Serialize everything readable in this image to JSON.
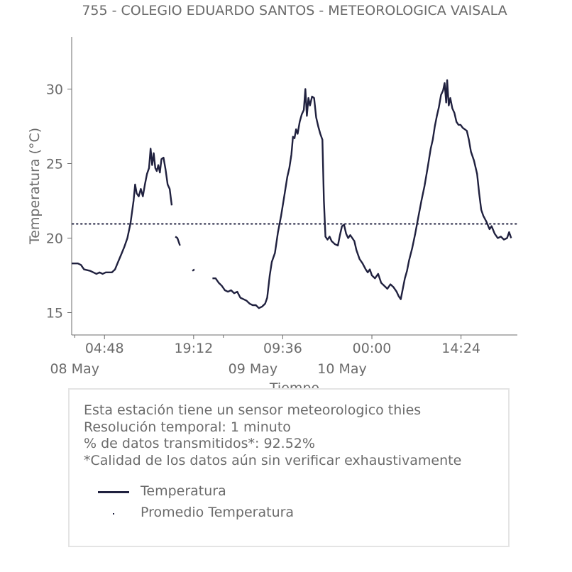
{
  "chart_data": {
    "type": "line",
    "title": "755 - COLEGIO EDUARDO SANTOS - METEOROLOGICA VAISALA",
    "xlabel": "Tiempo",
    "ylabel": "Temperatura (°C)",
    "x_range": [
      "2024-05-07 23:30",
      "2024-05-10 23:30"
    ],
    "ylim": [
      13.5,
      33.5
    ],
    "grid": false,
    "y_ticks": [
      15,
      20,
      25,
      30
    ],
    "x_ticks": [
      {
        "t": "2024-05-08 04:48",
        "label": "04:48",
        "date_label": "08 May"
      },
      {
        "t": "2024-05-08 19:12",
        "label": "19:12",
        "date_label": ""
      },
      {
        "t": "2024-05-09 09:36",
        "label": "09:36",
        "date_label": "09 May"
      },
      {
        "t": "2024-05-10 00:00",
        "label": "00:00",
        "date_label": "10 May"
      },
      {
        "t": "2024-05-10 14:24",
        "label": "14:24",
        "date_label": ""
      }
    ],
    "minor_x_ticks": [
      "2024-05-08 00:00",
      "2024-05-09 00:00",
      "2024-05-10 00:00"
    ],
    "average_line": {
      "name": "Promedio Temperatura",
      "value": 20.95,
      "style": "dotted"
    },
    "series": [
      {
        "name": "Temperatura",
        "color": "#20213f",
        "segments": [
          [
            [
              "2024-05-07 23:30",
              18.3
            ],
            [
              "2024-05-08 00:30",
              18.3
            ],
            [
              "2024-05-08 01:00",
              18.2
            ],
            [
              "2024-05-08 01:30",
              17.9
            ],
            [
              "2024-05-08 02:30",
              17.8
            ],
            [
              "2024-05-08 03:00",
              17.7
            ],
            [
              "2024-05-08 03:30",
              17.6
            ],
            [
              "2024-05-08 04:00",
              17.7
            ],
            [
              "2024-05-08 04:30",
              17.6
            ],
            [
              "2024-05-08 05:00",
              17.7
            ],
            [
              "2024-05-08 05:30",
              17.7
            ],
            [
              "2024-05-08 06:00",
              17.7
            ],
            [
              "2024-05-08 06:30",
              17.9
            ],
            [
              "2024-05-08 07:00",
              18.4
            ],
            [
              "2024-05-08 07:30",
              18.9
            ],
            [
              "2024-05-08 08:00",
              19.4
            ],
            [
              "2024-05-08 08:30",
              20.0
            ],
            [
              "2024-05-08 09:00",
              21.0
            ],
            [
              "2024-05-08 09:30",
              22.5
            ],
            [
              "2024-05-08 09:45",
              23.6
            ],
            [
              "2024-05-08 10:00",
              23.0
            ],
            [
              "2024-05-08 10:20",
              22.8
            ],
            [
              "2024-05-08 10:40",
              23.3
            ],
            [
              "2024-05-08 11:00",
              22.8
            ],
            [
              "2024-05-08 11:20",
              23.6
            ],
            [
              "2024-05-08 11:40",
              24.3
            ],
            [
              "2024-05-08 12:00",
              24.7
            ],
            [
              "2024-05-08 12:15",
              26.0
            ],
            [
              "2024-05-08 12:30",
              24.9
            ],
            [
              "2024-05-08 12:45",
              25.7
            ],
            [
              "2024-05-08 13:00",
              24.7
            ],
            [
              "2024-05-08 13:15",
              24.5
            ],
            [
              "2024-05-08 13:30",
              24.9
            ],
            [
              "2024-05-08 13:45",
              24.4
            ],
            [
              "2024-05-08 14:00",
              25.3
            ],
            [
              "2024-05-08 14:20",
              25.4
            ],
            [
              "2024-05-08 14:40",
              24.6
            ],
            [
              "2024-05-08 15:00",
              23.6
            ],
            [
              "2024-05-08 15:20",
              23.3
            ],
            [
              "2024-05-08 15:40",
              22.2
            ]
          ],
          [
            [
              "2024-05-08 16:15",
              20.1
            ],
            [
              "2024-05-08 16:35",
              20.0
            ],
            [
              "2024-05-08 17:00",
              19.5
            ]
          ],
          [
            [
              "2024-05-08 19:00",
              17.8
            ],
            [
              "2024-05-08 19:20",
              17.9
            ]
          ],
          [
            [
              "2024-05-08 22:15",
              17.3
            ],
            [
              "2024-05-08 22:45",
              17.3
            ],
            [
              "2024-05-08 23:15",
              17.0
            ],
            [
              "2024-05-08 23:45",
              16.8
            ],
            [
              "2024-05-09 00:15",
              16.5
            ],
            [
              "2024-05-09 00:45",
              16.4
            ],
            [
              "2024-05-09 01:15",
              16.5
            ],
            [
              "2024-05-09 01:45",
              16.3
            ],
            [
              "2024-05-09 02:15",
              16.4
            ],
            [
              "2024-05-09 02:45",
              16.0
            ],
            [
              "2024-05-09 03:15",
              15.9
            ],
            [
              "2024-05-09 03:45",
              15.8
            ],
            [
              "2024-05-09 04:15",
              15.6
            ],
            [
              "2024-05-09 04:45",
              15.5
            ],
            [
              "2024-05-09 05:15",
              15.5
            ],
            [
              "2024-05-09 05:45",
              15.3
            ],
            [
              "2024-05-09 06:15",
              15.4
            ],
            [
              "2024-05-09 06:45",
              15.6
            ],
            [
              "2024-05-09 07:05",
              16.0
            ],
            [
              "2024-05-09 07:30",
              17.5
            ],
            [
              "2024-05-09 07:50",
              18.4
            ],
            [
              "2024-05-09 08:20",
              19.0
            ],
            [
              "2024-05-09 08:50",
              20.4
            ],
            [
              "2024-05-09 09:20",
              21.5
            ],
            [
              "2024-05-09 09:50",
              22.8
            ],
            [
              "2024-05-09 10:20",
              24.1
            ],
            [
              "2024-05-09 10:40",
              24.7
            ],
            [
              "2024-05-09 11:00",
              25.6
            ],
            [
              "2024-05-09 11:15",
              26.8
            ],
            [
              "2024-05-09 11:30",
              26.7
            ],
            [
              "2024-05-09 11:45",
              27.3
            ],
            [
              "2024-05-09 12:00",
              27.0
            ],
            [
              "2024-05-09 12:20",
              27.8
            ],
            [
              "2024-05-09 12:40",
              28.3
            ],
            [
              "2024-05-09 13:00",
              28.6
            ],
            [
              "2024-05-09 13:15",
              30.0
            ],
            [
              "2024-05-09 13:30",
              28.2
            ],
            [
              "2024-05-09 13:45",
              29.4
            ],
            [
              "2024-05-09 14:00",
              28.9
            ],
            [
              "2024-05-09 14:20",
              29.5
            ],
            [
              "2024-05-09 14:40",
              29.4
            ],
            [
              "2024-05-09 15:00",
              28.1
            ],
            [
              "2024-05-09 15:20",
              27.5
            ],
            [
              "2024-05-09 15:40",
              27.0
            ],
            [
              "2024-05-09 16:00",
              26.6
            ],
            [
              "2024-05-09 16:15",
              22.5
            ],
            [
              "2024-05-09 16:30",
              20.1
            ],
            [
              "2024-05-09 16:50",
              19.9
            ],
            [
              "2024-05-09 17:10",
              20.1
            ],
            [
              "2024-05-09 17:30",
              19.8
            ],
            [
              "2024-05-09 18:00",
              19.6
            ],
            [
              "2024-05-09 18:30",
              19.5
            ],
            [
              "2024-05-09 18:50",
              20.2
            ],
            [
              "2024-05-09 19:10",
              20.8
            ],
            [
              "2024-05-09 19:30",
              20.9
            ],
            [
              "2024-05-09 19:50",
              20.3
            ],
            [
              "2024-05-09 20:10",
              20.0
            ],
            [
              "2024-05-09 20:30",
              20.2
            ],
            [
              "2024-05-09 20:50",
              20.0
            ],
            [
              "2024-05-09 21:10",
              19.8
            ],
            [
              "2024-05-09 21:30",
              19.2
            ],
            [
              "2024-05-09 22:00",
              18.6
            ],
            [
              "2024-05-09 22:30",
              18.3
            ],
            [
              "2024-05-09 23:00",
              17.9
            ],
            [
              "2024-05-09 23:20",
              17.7
            ],
            [
              "2024-05-09 23:40",
              17.9
            ],
            [
              "2024-05-10 00:00",
              17.5
            ],
            [
              "2024-05-10 00:30",
              17.3
            ],
            [
              "2024-05-10 01:00",
              17.6
            ],
            [
              "2024-05-10 01:30",
              17.0
            ],
            [
              "2024-05-10 02:00",
              16.8
            ],
            [
              "2024-05-10 02:30",
              16.6
            ],
            [
              "2024-05-10 03:00",
              16.9
            ],
            [
              "2024-05-10 03:30",
              16.7
            ],
            [
              "2024-05-10 04:00",
              16.4
            ],
            [
              "2024-05-10 04:20",
              16.1
            ],
            [
              "2024-05-10 04:40",
              15.9
            ],
            [
              "2024-05-10 05:00",
              16.6
            ],
            [
              "2024-05-10 05:20",
              17.3
            ],
            [
              "2024-05-10 05:40",
              17.8
            ],
            [
              "2024-05-10 06:00",
              18.5
            ],
            [
              "2024-05-10 06:30",
              19.3
            ],
            [
              "2024-05-10 07:00",
              20.3
            ],
            [
              "2024-05-10 07:30",
              21.4
            ],
            [
              "2024-05-10 08:00",
              22.5
            ],
            [
              "2024-05-10 08:30",
              23.5
            ],
            [
              "2024-05-10 09:00",
              24.7
            ],
            [
              "2024-05-10 09:30",
              26.0
            ],
            [
              "2024-05-10 09:50",
              26.6
            ],
            [
              "2024-05-10 10:10",
              27.5
            ],
            [
              "2024-05-10 10:30",
              28.2
            ],
            [
              "2024-05-10 10:50",
              28.8
            ],
            [
              "2024-05-10 11:10",
              29.6
            ],
            [
              "2024-05-10 11:30",
              29.9
            ],
            [
              "2024-05-10 11:45",
              30.4
            ],
            [
              "2024-05-10 12:00",
              29.1
            ],
            [
              "2024-05-10 12:10",
              30.6
            ],
            [
              "2024-05-10 12:25",
              28.9
            ],
            [
              "2024-05-10 12:40",
              29.4
            ],
            [
              "2024-05-10 13:00",
              28.7
            ],
            [
              "2024-05-10 13:20",
              28.4
            ],
            [
              "2024-05-10 13:40",
              27.8
            ],
            [
              "2024-05-10 14:00",
              27.6
            ],
            [
              "2024-05-10 14:20",
              27.6
            ],
            [
              "2024-05-10 14:40",
              27.4
            ],
            [
              "2024-05-10 15:00",
              27.3
            ],
            [
              "2024-05-10 15:20",
              27.2
            ],
            [
              "2024-05-10 15:40",
              26.6
            ],
            [
              "2024-05-10 16:00",
              25.8
            ],
            [
              "2024-05-10 16:30",
              25.2
            ],
            [
              "2024-05-10 17:00",
              24.3
            ],
            [
              "2024-05-10 17:20",
              23.0
            ],
            [
              "2024-05-10 17:40",
              21.9
            ],
            [
              "2024-05-10 18:00",
              21.5
            ],
            [
              "2024-05-10 18:30",
              21.1
            ],
            [
              "2024-05-10 19:00",
              20.6
            ],
            [
              "2024-05-10 19:20",
              20.8
            ],
            [
              "2024-05-10 19:50",
              20.3
            ],
            [
              "2024-05-10 20:20",
              20.0
            ],
            [
              "2024-05-10 20:50",
              20.1
            ],
            [
              "2024-05-10 21:20",
              19.9
            ],
            [
              "2024-05-10 21:50",
              20.0
            ],
            [
              "2024-05-10 22:10",
              20.4
            ],
            [
              "2024-05-10 22:30",
              20.0
            ]
          ]
        ]
      }
    ]
  },
  "info_box": {
    "lines": [
      "Esta estación tiene un sensor meteorologico thies",
      "Resolución temporal: 1 minuto",
      "% de datos transmitidos*: 92.52%",
      "*Calidad de los datos aún sin verificar exhaustivamente"
    ],
    "legend": [
      {
        "label": "Temperatura"
      },
      {
        "label": "Promedio Temperatura"
      }
    ]
  }
}
